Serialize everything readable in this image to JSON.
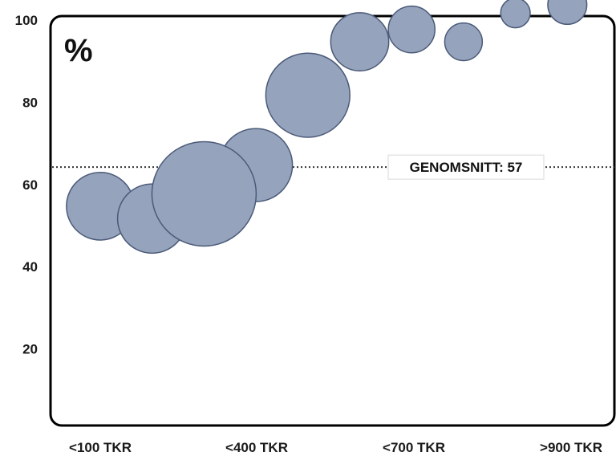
{
  "chart_data": {
    "type": "scatter",
    "variant": "bubble",
    "unit_label": "%",
    "x_tick_labels": [
      "<100 TKR",
      "<400 TKR",
      "<700 TKR",
      ">900 TKR"
    ],
    "y_ticks": [
      20,
      40,
      60,
      80,
      100
    ],
    "ylim": [
      0,
      100
    ],
    "grid": false,
    "legend": "none",
    "points": [
      {
        "x": 1,
        "y": 43,
        "size": 0.42
      },
      {
        "x": 2,
        "y": 40,
        "size": 0.44
      },
      {
        "x": 4,
        "y": 53,
        "size": 0.49
      },
      {
        "x": 3,
        "y": 46,
        "size": 1.0
      },
      {
        "x": 5,
        "y": 70,
        "size": 0.65
      },
      {
        "x": 6,
        "y": 83,
        "size": 0.31
      },
      {
        "x": 7,
        "y": 86,
        "size": 0.2
      },
      {
        "x": 8,
        "y": 83,
        "size": 0.13
      },
      {
        "x": 9,
        "y": 90,
        "size": 0.08
      },
      {
        "x": 10,
        "y": 92,
        "size": 0.14
      }
    ],
    "average": {
      "value": 57,
      "label": "GENOMSNITT: 57"
    },
    "colors": {
      "bubble_fill": "#95a3bc",
      "bubble_stroke": "#4b5a78",
      "frame": "#000000"
    }
  }
}
